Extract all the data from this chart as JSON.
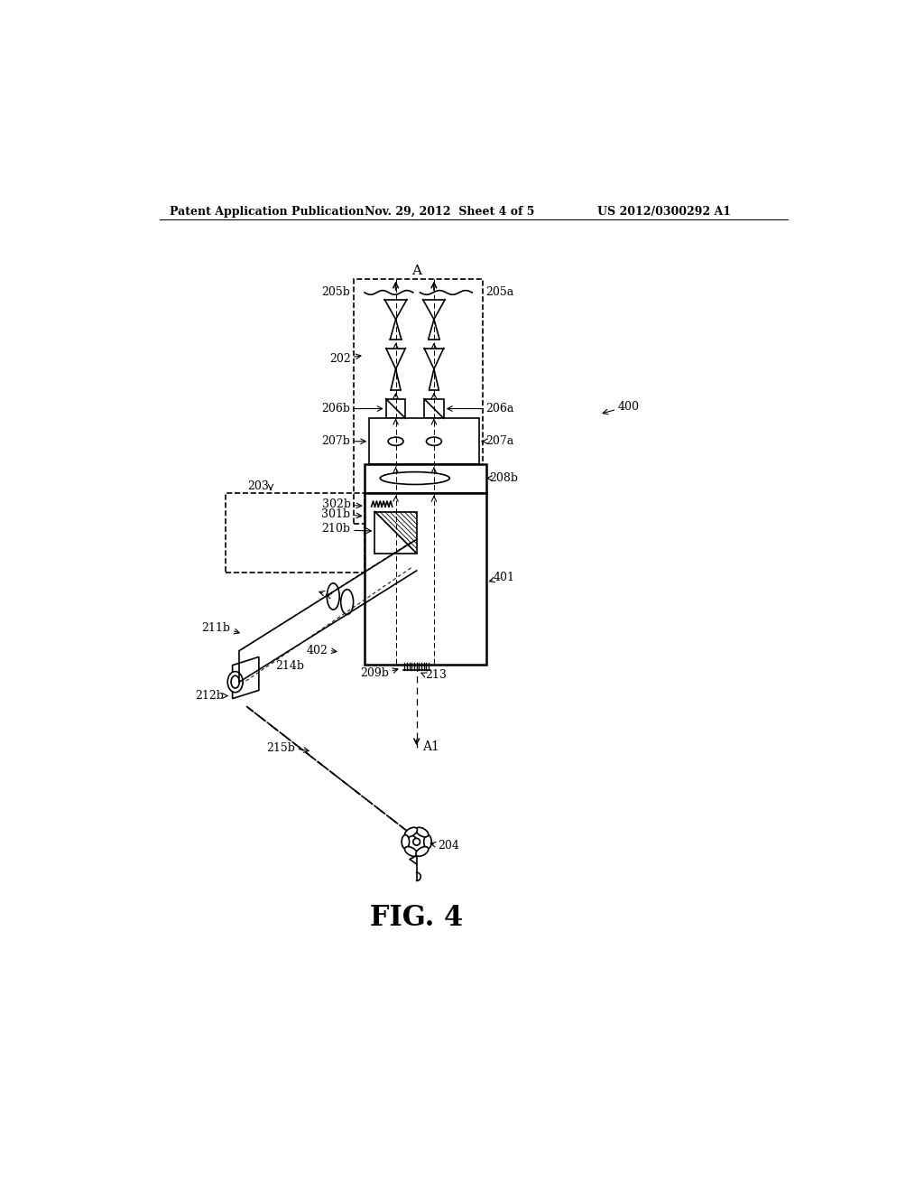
{
  "title": "FIG. 4",
  "header_left": "Patent Application Publication",
  "header_mid": "Nov. 29, 2012  Sheet 4 of 5",
  "header_right": "US 2012/0300292 A1",
  "bg_color": "#ffffff",
  "label_fontsize": 9,
  "title_fontsize": 22,
  "lw": 1.2,
  "lw_thick": 1.8
}
